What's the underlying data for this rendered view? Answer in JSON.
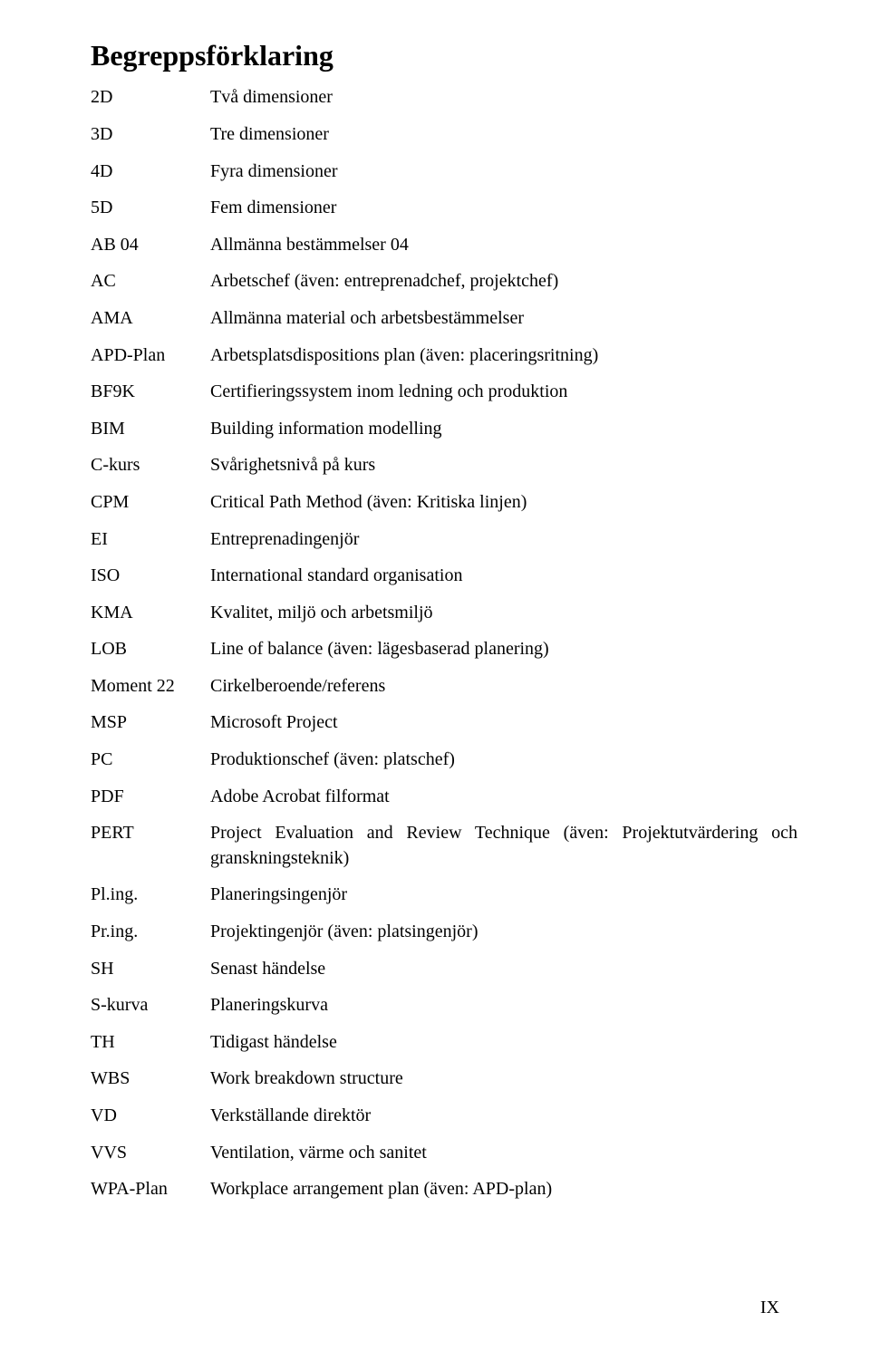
{
  "heading": "Begreppsförklaring",
  "definitions": [
    {
      "term": "2D",
      "desc": "Två dimensioner"
    },
    {
      "term": "3D",
      "desc": "Tre dimensioner"
    },
    {
      "term": "4D",
      "desc": "Fyra dimensioner"
    },
    {
      "term": "5D",
      "desc": "Fem dimensioner"
    },
    {
      "term": "AB 04",
      "desc": "Allmänna bestämmelser 04"
    },
    {
      "term": "AC",
      "desc": "Arbetschef (även: entreprenadchef, projektchef)"
    },
    {
      "term": "AMA",
      "desc": "Allmänna material och arbetsbestämmelser"
    },
    {
      "term": "APD-Plan",
      "desc": "Arbetsplatsdispositions plan (även: placeringsritning)"
    },
    {
      "term": "BF9K",
      "desc": "Certifieringssystem inom ledning och produktion"
    },
    {
      "term": "BIM",
      "desc": "Building information modelling"
    },
    {
      "term": "C-kurs",
      "desc": "Svårighetsnivå på kurs"
    },
    {
      "term": "CPM",
      "desc": "Critical Path Method (även: Kritiska linjen)"
    },
    {
      "term": "EI",
      "desc": "Entreprenadingenjör"
    },
    {
      "term": "ISO",
      "desc": "International standard organisation"
    },
    {
      "term": "KMA",
      "desc": "Kvalitet, miljö och arbetsmiljö"
    },
    {
      "term": "LOB",
      "desc": "Line of balance (även: lägesbaserad planering)"
    },
    {
      "term": "Moment 22",
      "desc": "Cirkelberoende/referens"
    },
    {
      "term": "MSP",
      "desc": "Microsoft Project"
    },
    {
      "term": "PC",
      "desc": "Produktionschef (även: platschef)"
    },
    {
      "term": "PDF",
      "desc": "Adobe Acrobat filformat"
    },
    {
      "term": "PERT",
      "desc": "Project Evaluation and Review Technique (även: Projektutvärdering och granskningsteknik)"
    },
    {
      "term": "Pl.ing.",
      "desc": "Planeringsingenjör"
    },
    {
      "term": "Pr.ing.",
      "desc": "Projektingenjör (även: platsingenjör)"
    },
    {
      "term": "SH",
      "desc": "Senast händelse"
    },
    {
      "term": "S-kurva",
      "desc": "Planeringskurva"
    },
    {
      "term": "TH",
      "desc": "Tidigast händelse"
    },
    {
      "term": "WBS",
      "desc": " Work breakdown structure"
    },
    {
      "term": "VD",
      "desc": "Verkställande direktör"
    },
    {
      "term": "VVS",
      "desc": "Ventilation, värme och sanitet"
    },
    {
      "term": "WPA-Plan",
      "desc": "Workplace arrangement plan (även: APD-plan)"
    }
  ],
  "page_number": "IX"
}
